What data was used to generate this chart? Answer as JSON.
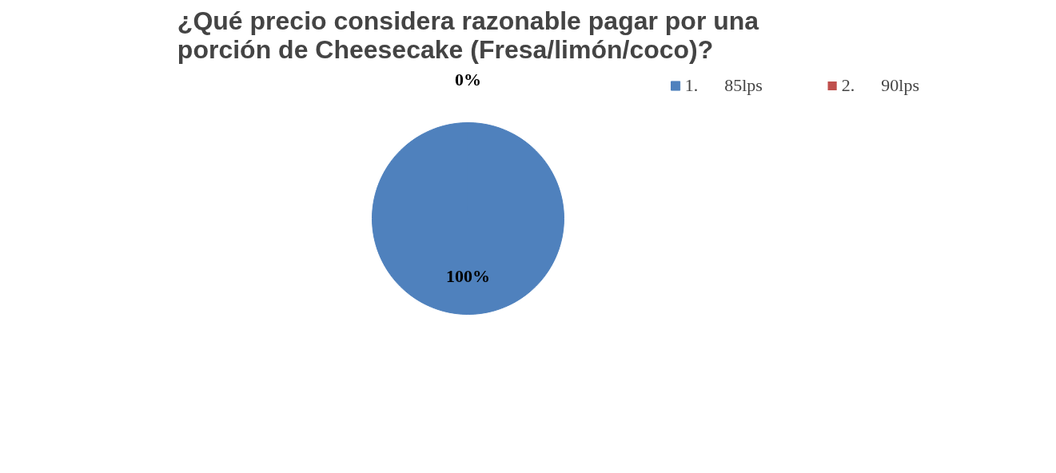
{
  "chart_data": {
    "type": "pie",
    "title": "¿Qué precio considera razonable pagar por una porción de Cheesecake (Fresa/limón/coco)?",
    "categories": [
      "1.      85lps",
      "2.      90lps"
    ],
    "values": [
      100,
      0
    ],
    "colors": [
      "#4f81bd",
      "#c0504d"
    ],
    "value_labels": [
      "100%",
      "0%"
    ],
    "legend": "top right"
  }
}
